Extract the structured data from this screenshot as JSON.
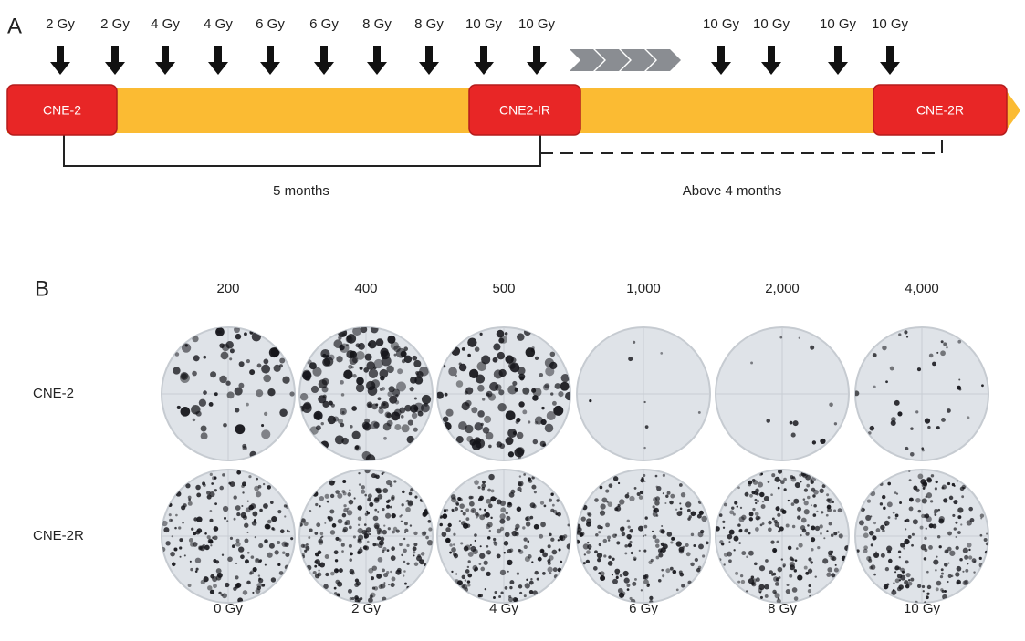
{
  "panel_a": {
    "label": "A",
    "doses": [
      "2 Gy",
      "2 Gy",
      "4 Gy",
      "4 Gy",
      "6 Gy",
      "6 Gy",
      "8 Gy",
      "8 Gy",
      "10 Gy",
      "10 Gy",
      "10 Gy",
      "10 Gy",
      "10 Gy",
      "10 Gy"
    ],
    "stages": [
      "CNE-2",
      "CNE2-IR",
      "CNE-2R"
    ],
    "durations": [
      "5 months",
      "Above 4 months"
    ]
  },
  "panel_b": {
    "label": "B",
    "cell_numbers": [
      "200",
      "400",
      "500",
      "1,000",
      "2,000",
      "4,000"
    ],
    "rows": [
      "CNE-2",
      "CNE-2R"
    ],
    "doses": [
      "0 Gy",
      "2 Gy",
      "4 Gy",
      "6 Gy",
      "8 Gy",
      "10 Gy"
    ]
  }
}
